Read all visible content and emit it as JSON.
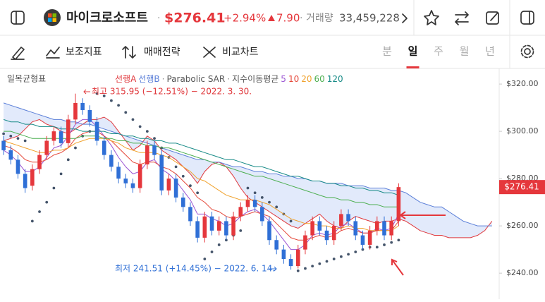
{
  "header": {
    "name": "마이크로소프트",
    "price": "$276.41",
    "change_pct": "+2.94%",
    "change": "7.90",
    "separator": "·",
    "volume_label": "거래량",
    "volume": "33,459,228"
  },
  "toolbar": {
    "indicators": "보조지표",
    "strategy": "매매전략",
    "compare": "비교차트",
    "periods": [
      "분",
      "일",
      "주",
      "월",
      "년"
    ],
    "active_period": "일"
  },
  "chart_data": {
    "type": "candlestick",
    "title": "일목균형표",
    "legend_separator": "·",
    "up_color": "#e5373c",
    "down_color": "#2f6fd6",
    "xlim": [
      -0.5,
      69
    ],
    "ylim": [
      229,
      326.6
    ],
    "yticks": [
      {
        "value": 240,
        "label": "$240.00"
      },
      {
        "value": 260,
        "label": "$260.00"
      },
      {
        "value": 280,
        "label": "$280.00"
      },
      {
        "value": 300,
        "label": "$300.00"
      },
      {
        "value": 320,
        "label": "$320.00"
      }
    ],
    "grid": false,
    "candles": {
      "open": [
        296,
        292,
        288,
        282,
        277,
        284,
        290,
        296,
        300,
        295,
        305,
        312,
        309,
        304,
        296,
        290,
        285,
        280,
        278,
        276,
        286,
        294,
        290,
        275,
        280,
        272,
        268,
        262,
        255,
        264,
        258,
        262,
        256,
        264,
        268,
        271,
        268,
        262,
        254,
        250,
        246,
        243,
        250,
        256,
        262,
        258,
        254,
        260,
        265,
        262,
        256,
        252,
        258,
        262,
        256,
        262
      ],
      "high": [
        298,
        294,
        290,
        284,
        286,
        292,
        298,
        302,
        302,
        307,
        315.95,
        314,
        311,
        306,
        298,
        292,
        287,
        282,
        280,
        288,
        296,
        296,
        292,
        282,
        282,
        274,
        270,
        264,
        266,
        266,
        264,
        264,
        266,
        270,
        273,
        273,
        270,
        264,
        256,
        252,
        248,
        252,
        258,
        264,
        264,
        260,
        262,
        267,
        267,
        264,
        258,
        260,
        264,
        264,
        264,
        278
      ],
      "low": [
        290,
        286,
        280,
        274,
        275,
        282,
        288,
        294,
        293,
        293,
        303,
        307,
        302,
        294,
        288,
        283,
        278,
        276,
        274,
        274,
        284,
        288,
        273,
        273,
        270,
        266,
        260,
        253,
        253,
        256,
        256,
        254,
        254,
        262,
        266,
        266,
        260,
        252,
        248,
        244,
        241.51,
        242,
        248,
        254,
        256,
        252,
        252,
        258,
        260,
        254,
        250,
        250,
        256,
        254,
        254,
        260
      ],
      "close": [
        292,
        288,
        282,
        276,
        284,
        290,
        296,
        300,
        295,
        305,
        312,
        309,
        304,
        296,
        290,
        285,
        280,
        278,
        276,
        286,
        294,
        290,
        275,
        280,
        272,
        268,
        262,
        255,
        264,
        258,
        262,
        256,
        264,
        268,
        271,
        268,
        262,
        254,
        250,
        246,
        243,
        250,
        256,
        262,
        258,
        254,
        260,
        265,
        262,
        256,
        252,
        258,
        262,
        256,
        262,
        276.41
      ]
    },
    "cloud_color": "#dde6fa",
    "indicators": [
      {
        "name": "선행A",
        "color": "#e0383c",
        "values": [
          296,
          297,
          298,
          301,
          304,
          305,
          303,
          302,
          300,
          299,
          301,
          303,
          305,
          305,
          306,
          304,
          300,
          296,
          292,
          294,
          298,
          296,
          292,
          290,
          288,
          285,
          282,
          278,
          283,
          286,
          287,
          285,
          281,
          276,
          272,
          270,
          268,
          266,
          264,
          262,
          260,
          259,
          261,
          263,
          265,
          262,
          260,
          259,
          262,
          264,
          263,
          262,
          261,
          262,
          262,
          263,
          262,
          260,
          258,
          257,
          256,
          256,
          255,
          255,
          255,
          255,
          256,
          258,
          262
        ]
      },
      {
        "name": "선행B",
        "color": "#5b7fd8",
        "values": [
          312,
          311,
          310,
          309,
          308,
          307,
          306,
          305,
          305,
          304,
          304,
          303,
          303,
          302,
          301,
          300,
          299,
          298,
          297,
          296,
          295,
          294,
          293,
          292,
          291,
          290,
          289,
          288,
          288,
          287,
          287,
          286,
          285,
          285,
          284,
          283,
          283,
          282,
          282,
          281,
          281,
          280,
          280,
          279,
          279,
          278,
          278,
          278,
          277,
          277,
          277,
          276,
          276,
          276,
          275,
          275,
          274,
          272,
          270,
          269,
          268,
          268,
          266,
          264,
          262,
          261,
          260,
          260,
          260
        ]
      },
      {
        "name": "Parabolic SAR",
        "color": "#44546a",
        "style": "dots",
        "values": [
          299,
          298,
          297,
          296,
          262,
          266,
          270,
          276,
          282,
          288,
          293,
          298,
          300,
          316,
          315,
          313,
          311,
          308,
          305,
          302,
          300,
          297,
          293,
          289,
          285,
          281,
          277,
          274,
          246,
          249,
          252,
          254,
          256,
          258,
          276,
          274,
          272,
          270,
          268,
          265,
          262,
          241,
          242,
          243,
          244,
          245,
          246,
          247,
          248,
          249,
          250,
          251,
          251,
          252,
          253,
          254
        ]
      }
    ],
    "ema_name": "지수이동평균",
    "ema": [
      {
        "name": "5",
        "color": "#9b55d3",
        "values": [
          292,
          290,
          287,
          283,
          283,
          285,
          289,
          293,
          294,
          298,
          303,
          305,
          305,
          302,
          298,
          294,
          289,
          285,
          282,
          283,
          287,
          288,
          284,
          282,
          279,
          275,
          271,
          265,
          265,
          263,
          262,
          260,
          261,
          264,
          266,
          267,
          265,
          262,
          258,
          254,
          250,
          250,
          252,
          256,
          257,
          256,
          257,
          260,
          261,
          259,
          257,
          257,
          259,
          258,
          259,
          265
        ]
      },
      {
        "name": "10",
        "color": "#e5483a",
        "values": [
          294,
          293,
          291,
          288,
          287,
          287,
          288,
          290,
          291,
          293,
          297,
          299,
          300,
          300,
          298,
          296,
          293,
          290,
          287,
          286,
          287,
          287,
          285,
          284,
          282,
          279,
          276,
          272,
          270,
          267,
          266,
          264,
          263,
          264,
          265,
          266,
          265,
          264,
          261,
          258,
          255,
          254,
          254,
          255,
          256,
          255,
          256,
          258,
          259,
          258,
          257,
          257,
          258,
          258,
          258,
          262
        ]
      },
      {
        "name": "20",
        "color": "#f0a22e",
        "values": [
          296,
          295,
          294,
          293,
          292,
          291,
          291,
          292,
          292,
          293,
          295,
          296,
          297,
          297,
          297,
          296,
          295,
          293,
          292,
          291,
          291,
          291,
          290,
          289,
          287,
          285,
          283,
          280,
          279,
          277,
          275,
          273,
          272,
          271,
          271,
          271,
          270,
          269,
          267,
          265,
          263,
          262,
          261,
          261,
          260,
          260,
          259,
          259,
          260,
          259,
          259,
          258,
          258,
          258,
          258,
          260
        ]
      },
      {
        "name": "60",
        "color": "#4caf50",
        "values": [
          300,
          300,
          299,
          298,
          297,
          297,
          297,
          297,
          297,
          297,
          297,
          298,
          298,
          298,
          297,
          297,
          296,
          296,
          295,
          295,
          294,
          294,
          293,
          293,
          292,
          291,
          290,
          289,
          288,
          287,
          286,
          285,
          284,
          283,
          282,
          281,
          281,
          280,
          279,
          278,
          277,
          276,
          275,
          274,
          273,
          272,
          272,
          271,
          271,
          270,
          270,
          269,
          269,
          268,
          268,
          268
        ]
      },
      {
        "name": "120",
        "color": "#168a86",
        "values": [
          305,
          304,
          304,
          303,
          303,
          302,
          302,
          302,
          301,
          301,
          301,
          300,
          300,
          300,
          300,
          299,
          299,
          298,
          298,
          297,
          297,
          296,
          296,
          295,
          295,
          294,
          293,
          292,
          291,
          290,
          289,
          288,
          288,
          287,
          286,
          285,
          285,
          284,
          283,
          282,
          281,
          281,
          280,
          279,
          279,
          278,
          278,
          277,
          277,
          276,
          276,
          275,
          275,
          274,
          274,
          273
        ]
      }
    ],
    "annotations": [
      {
        "text": "최고 315.95 (−12.51%) − 2022. 3. 30.",
        "color": "#e0383c"
      },
      {
        "text": "최저 241.51 (+14.45%) − 2022. 6. 14.",
        "color": "#2f6fd6"
      }
    ]
  }
}
